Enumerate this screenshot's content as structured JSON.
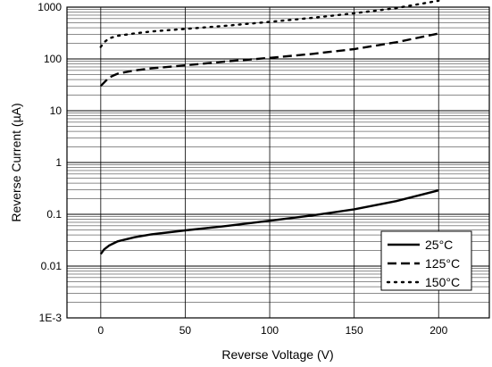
{
  "chart_data": {
    "type": "line",
    "title": "",
    "xlabel": "Reverse Voltage (V)",
    "ylabel": "Reverse Current (µA)",
    "xlim": [
      -20,
      230
    ],
    "ylim": [
      0.001,
      1000
    ],
    "yscale": "log",
    "grid": true,
    "legend_position": "bottom-right",
    "x_ticks": [
      {
        "value": 0,
        "label": "0"
      },
      {
        "value": 50,
        "label": "50"
      },
      {
        "value": 100,
        "label": "100"
      },
      {
        "value": 150,
        "label": "150"
      },
      {
        "value": 200,
        "label": "200"
      }
    ],
    "y_ticks": [
      {
        "value": 0.001,
        "label": "1E-3"
      },
      {
        "value": 0.01,
        "label": "0.01"
      },
      {
        "value": 0.1,
        "label": "0.1"
      },
      {
        "value": 1,
        "label": "1"
      },
      {
        "value": 10,
        "label": "10"
      },
      {
        "value": 100,
        "label": "100"
      },
      {
        "value": 1000,
        "label": "1000"
      }
    ],
    "series": [
      {
        "name": "25°C",
        "style": "solid",
        "color": "#000000",
        "x": [
          0,
          2,
          5,
          10,
          20,
          30,
          50,
          75,
          100,
          125,
          150,
          175,
          200
        ],
        "y": [
          0.017,
          0.021,
          0.025,
          0.03,
          0.036,
          0.041,
          0.049,
          0.06,
          0.075,
          0.095,
          0.125,
          0.18,
          0.29
        ]
      },
      {
        "name": "125°C",
        "style": "dashed",
        "color": "#000000",
        "x": [
          0,
          2,
          5,
          10,
          20,
          30,
          50,
          75,
          100,
          125,
          150,
          175,
          200
        ],
        "y": [
          30,
          35,
          44,
          52,
          60,
          66,
          75,
          90,
          105,
          125,
          155,
          210,
          310
        ]
      },
      {
        "name": "150°C",
        "style": "dotted",
        "color": "#000000",
        "x": [
          0,
          2,
          5,
          10,
          20,
          30,
          50,
          75,
          100,
          125,
          150,
          175,
          200
        ],
        "y": [
          170,
          210,
          250,
          280,
          310,
          340,
          380,
          440,
          520,
          620,
          760,
          960,
          1330
        ]
      }
    ]
  }
}
